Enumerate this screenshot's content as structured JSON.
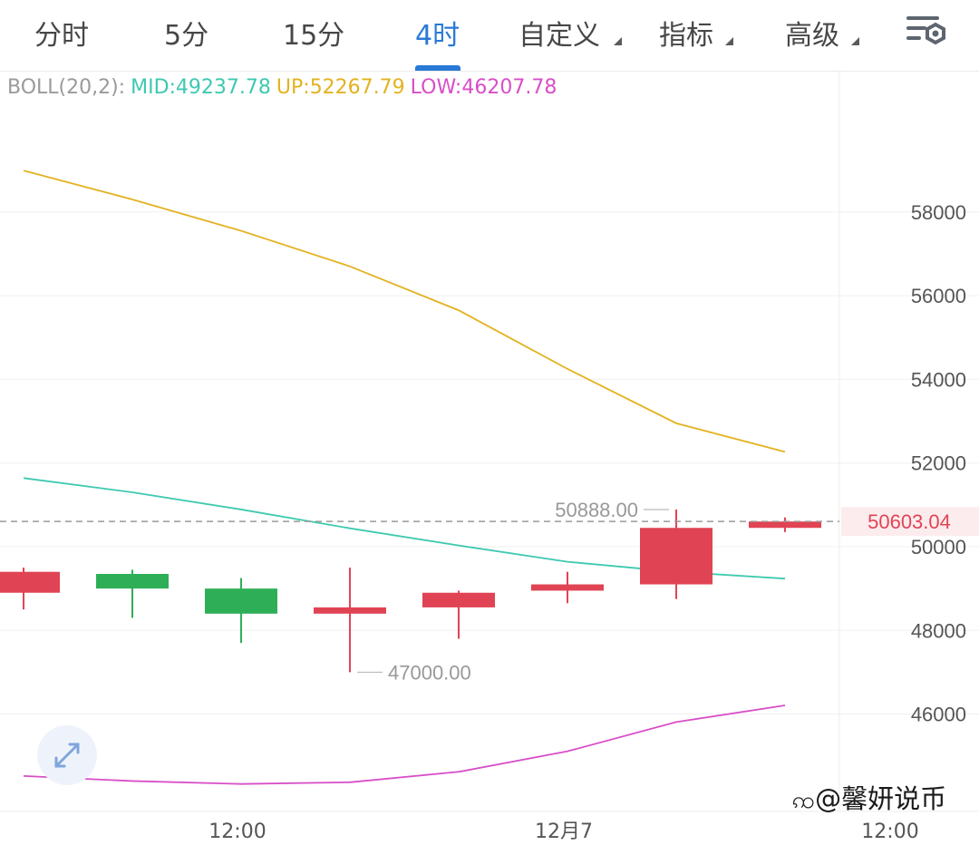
{
  "tabs": [
    {
      "label": "分时",
      "active": false,
      "dropdown": false
    },
    {
      "label": "5分",
      "active": false,
      "dropdown": false
    },
    {
      "label": "15分",
      "active": false,
      "dropdown": false
    },
    {
      "label": "4时",
      "active": true,
      "dropdown": false
    },
    {
      "label": "自定义",
      "active": false,
      "dropdown": true
    },
    {
      "label": "指标",
      "active": false,
      "dropdown": true
    },
    {
      "label": "高级",
      "active": false,
      "dropdown": true
    }
  ],
  "settings_icon": "chart-settings-icon",
  "indicator": {
    "name": "BOLL(20,2):",
    "mid": "MID:49237.78",
    "up": "UP:52267.79",
    "low": "LOW:46207.78"
  },
  "colors": {
    "up_candle": "#e04454",
    "down_candle": "#2eaf57",
    "mid": "#3ec9b0",
    "upper": "#e3b21f",
    "lower": "#d84ec8",
    "active_tab": "#2979d6"
  },
  "chart_data": {
    "type": "candlestick",
    "y_ticks": [
      "58000",
      "56000",
      "54000",
      "52000",
      "50000",
      "48000",
      "46000"
    ],
    "x_ticks": [
      {
        "label": "12:00",
        "index": 2
      },
      {
        "label": "12月7",
        "index": 5
      },
      {
        "label": "12:00",
        "index": 8
      }
    ],
    "candles": [
      {
        "open": 48900,
        "high": 49500,
        "low": 48500,
        "close": 49400
      },
      {
        "open": 49350,
        "high": 49450,
        "low": 48300,
        "close": 49000
      },
      {
        "open": 49000,
        "high": 49250,
        "low": 47700,
        "close": 48400
      },
      {
        "open": 48400,
        "high": 49500,
        "low": 47000,
        "close": 48550
      },
      {
        "open": 48550,
        "high": 48950,
        "low": 47800,
        "close": 48900
      },
      {
        "open": 48950,
        "high": 49400,
        "low": 48650,
        "close": 49100
      },
      {
        "open": 49100,
        "high": 50888,
        "low": 48750,
        "close": 50450
      },
      {
        "open": 50450,
        "high": 50700,
        "low": 50350,
        "close": 50603.04
      }
    ],
    "series": [
      {
        "name": "UP",
        "values": [
          null,
          58990,
          58300,
          57550,
          56700,
          55650,
          54250,
          52950,
          52267.79
        ],
        "x_start": -0.05
      },
      {
        "name": "MID",
        "values": [
          null,
          51640,
          51300,
          50890,
          50440,
          50030,
          49640,
          49400,
          49237.78
        ],
        "x_start": -0.05
      },
      {
        "name": "LOW",
        "values": [
          null,
          44520,
          44400,
          44330,
          44370,
          44620,
          45110,
          45810,
          46207.78
        ],
        "x_start": -0.05
      }
    ],
    "high_marker": "50888.00",
    "low_marker": "47000.00",
    "last_price": "50603.04",
    "grid": true
  },
  "watermark": "@馨妍说币"
}
